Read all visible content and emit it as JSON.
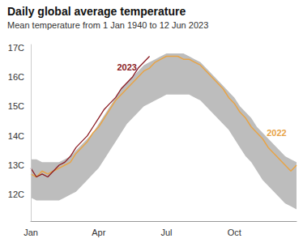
{
  "chart_data": {
    "type": "line",
    "title": "Daily global average temperature",
    "subtitle": "Mean temperature from 1 Jan 1940 to 12 Jun 2023",
    "categories": [
      "Jan",
      null,
      null,
      null,
      null,
      null,
      null,
      null,
      null,
      null,
      null,
      null,
      "Apr",
      null,
      null,
      null,
      null,
      null,
      null,
      null,
      null,
      null,
      null,
      null,
      "Jul",
      null,
      null,
      null,
      null,
      null,
      null,
      null,
      null,
      null,
      null,
      null,
      "Oct",
      null,
      null,
      null,
      null,
      null,
      null,
      null,
      null,
      null,
      null,
      null
    ],
    "band": {
      "color": "#bdbdbd",
      "high": [
        13.2,
        13.2,
        13.1,
        13.1,
        13.1,
        13.1,
        13.2,
        13.3,
        13.5,
        13.7,
        13.9,
        14.1,
        14.4,
        14.7,
        15.0,
        15.3,
        15.6,
        15.8,
        16.0,
        16.2,
        16.4,
        16.5,
        16.6,
        16.7,
        16.8,
        16.8,
        16.8,
        16.8,
        16.7,
        16.6,
        16.5,
        16.3,
        16.1,
        15.9,
        15.7,
        15.5,
        15.3,
        15.0,
        14.8,
        14.6,
        14.3,
        14.1,
        13.9,
        13.7,
        13.5,
        13.3,
        13.2,
        13.1
      ],
      "low": [
        11.9,
        11.8,
        11.8,
        11.8,
        11.8,
        11.8,
        11.9,
        12.0,
        12.1,
        12.3,
        12.5,
        12.7,
        12.9,
        13.2,
        13.5,
        13.8,
        14.1,
        14.4,
        14.6,
        14.8,
        15.0,
        15.1,
        15.2,
        15.3,
        15.4,
        15.4,
        15.4,
        15.4,
        15.4,
        15.3,
        15.2,
        15.0,
        14.8,
        14.6,
        14.4,
        14.2,
        13.9,
        13.6,
        13.3,
        13.1,
        12.8,
        12.5,
        12.3,
        12.1,
        11.9,
        11.7,
        11.6,
        11.5
      ]
    },
    "series": [
      {
        "name": "2022",
        "color": "#e8a446",
        "values": [
          12.7,
          12.6,
          12.8,
          12.7,
          12.8,
          12.9,
          13.0,
          13.1,
          13.4,
          13.6,
          13.8,
          14.1,
          14.3,
          14.6,
          14.9,
          15.2,
          15.4,
          15.6,
          15.8,
          16.0,
          16.2,
          16.3,
          16.5,
          16.6,
          16.7,
          16.7,
          16.7,
          16.6,
          16.6,
          16.5,
          16.4,
          16.2,
          16.0,
          15.8,
          15.6,
          15.3,
          15.1,
          14.8,
          14.6,
          14.3,
          14.1,
          13.9,
          13.6,
          13.4,
          13.2,
          13.0,
          12.8,
          13.0
        ]
      },
      {
        "name": "2023",
        "color": "#8b1c24",
        "values": [
          12.9,
          12.6,
          12.7,
          12.6,
          12.8,
          13.0,
          13.1,
          13.3,
          13.6,
          13.8,
          14.0,
          14.3,
          14.6,
          14.9,
          15.1,
          15.3,
          15.6,
          15.8,
          16.0,
          16.3,
          16.5,
          16.7,
          null,
          null,
          null,
          null,
          null,
          null,
          null,
          null,
          null,
          null,
          null,
          null,
          null,
          null,
          null,
          null,
          null,
          null,
          null,
          null,
          null,
          null,
          null,
          null,
          null,
          null
        ]
      }
    ],
    "ylim": [
      11.1,
      17.1
    ],
    "yticks": [
      {
        "value": 12,
        "label": "12C"
      },
      {
        "value": 13,
        "label": "13C"
      },
      {
        "value": 14,
        "label": "14C"
      },
      {
        "value": 15,
        "label": "15C"
      },
      {
        "value": 16,
        "label": "16C"
      },
      {
        "value": 17,
        "label": "17C"
      }
    ],
    "grid": false
  }
}
